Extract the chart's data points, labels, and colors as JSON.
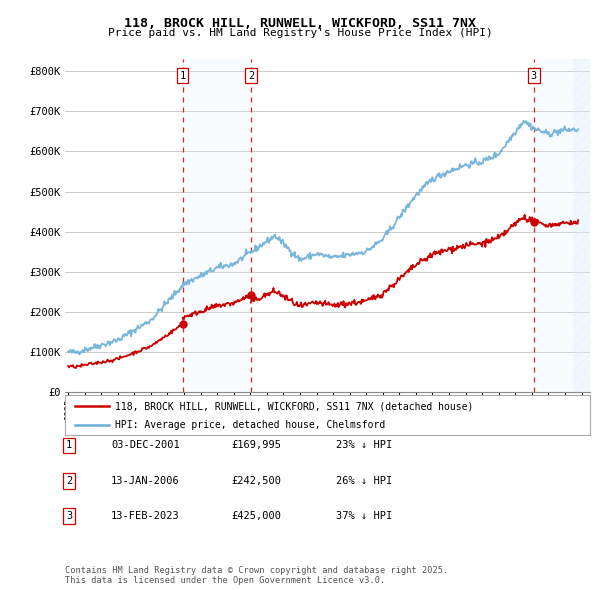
{
  "title": "118, BROCK HILL, RUNWELL, WICKFORD, SS11 7NX",
  "subtitle": "Price paid vs. HM Land Registry's House Price Index (HPI)",
  "ylabel_ticks": [
    "£0",
    "£100K",
    "£200K",
    "£300K",
    "£400K",
    "£500K",
    "£600K",
    "£700K",
    "£800K"
  ],
  "ytick_values": [
    0,
    100000,
    200000,
    300000,
    400000,
    500000,
    600000,
    700000,
    800000
  ],
  "ylim": [
    0,
    830000
  ],
  "xlim_start": 1994.8,
  "xlim_end": 2026.5,
  "xticks": [
    1995,
    1996,
    1997,
    1998,
    1999,
    2000,
    2001,
    2002,
    2003,
    2004,
    2005,
    2006,
    2007,
    2008,
    2009,
    2010,
    2011,
    2012,
    2013,
    2014,
    2015,
    2016,
    2017,
    2018,
    2019,
    2020,
    2021,
    2022,
    2023,
    2024,
    2025,
    2026
  ],
  "sale_dates": [
    2001.92,
    2006.04,
    2023.12
  ],
  "sale_prices": [
    169995,
    242500,
    425000
  ],
  "sale_labels": [
    "1",
    "2",
    "3"
  ],
  "legend_line1": "118, BROCK HILL, RUNWELL, WICKFORD, SS11 7NX (detached house)",
  "legend_line2": "HPI: Average price, detached house, Chelmsford",
  "table_data": [
    [
      "1",
      "03-DEC-2001",
      "£169,995",
      "23% ↓ HPI"
    ],
    [
      "2",
      "13-JAN-2006",
      "£242,500",
      "26% ↓ HPI"
    ],
    [
      "3",
      "13-FEB-2023",
      "£425,000",
      "37% ↓ HPI"
    ]
  ],
  "footnote": "Contains HM Land Registry data © Crown copyright and database right 2025.\nThis data is licensed under the Open Government Licence v3.0.",
  "hpi_color": "#6aaed6",
  "sale_color": "#cc0000",
  "vline_color": "#cc0000",
  "shade_color": "#ddeeff",
  "background_color": "#ffffff",
  "grid_color": "#cccccc"
}
